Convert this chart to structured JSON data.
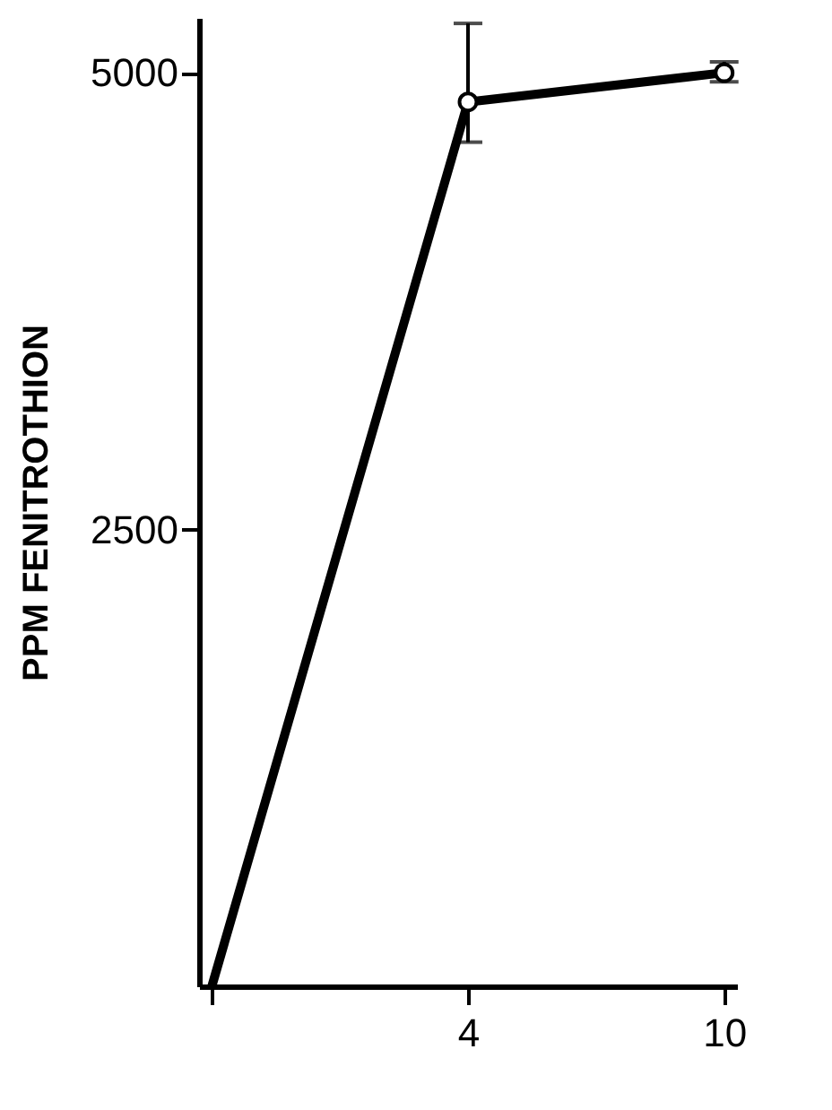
{
  "chart_data": {
    "type": "line",
    "ylabel": "PPM FENITROTHION",
    "categories": [
      null,
      "4",
      "10"
    ],
    "series": [
      {
        "color": "#000000",
        "values": [
          0,
          4840,
          5000
        ],
        "errors": [
          null,
          [
            4620,
            5270
          ],
          [
            4950,
            5060
          ]
        ]
      }
    ],
    "ylim": [
      0,
      5300
    ],
    "yticks": [
      2500,
      5000
    ],
    "grid": false,
    "marker": "circle",
    "line_style": "solid"
  }
}
